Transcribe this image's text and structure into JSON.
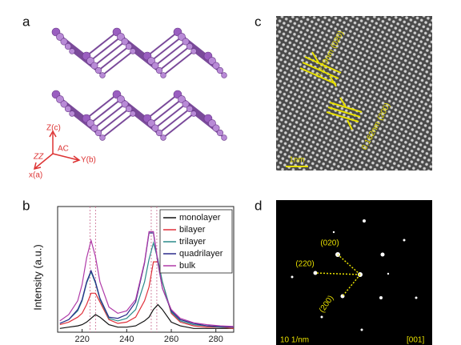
{
  "panels": {
    "a": {
      "label": "a",
      "axes_labels": {
        "z": "Z(c)",
        "ac": "AC",
        "zz": "ZZ",
        "y": "Y(b)",
        "x": "x(a)"
      }
    },
    "b": {
      "label": "b"
    },
    "c": {
      "label": "c",
      "annotations": [
        "0.229nm (020)",
        "0.162nm (200)"
      ],
      "scale_bar": "1nm"
    },
    "d": {
      "label": "d",
      "spots": [
        "(020)",
        "(220)",
        "(200)"
      ],
      "scale_bar": "10 1/nm",
      "zone_axis": "[001]"
    }
  },
  "chart_data": {
    "type": "line",
    "ylabel": "Intensity (a.u.)",
    "x": [
      210,
      214,
      218,
      220,
      222,
      224,
      226,
      228,
      232,
      236,
      240,
      244,
      248,
      250,
      252,
      254,
      256,
      260,
      264,
      270,
      276,
      282,
      288
    ],
    "xlim": [
      209,
      288
    ],
    "xticks": [
      220,
      240,
      260,
      280
    ],
    "ylim": [
      0,
      1
    ],
    "reference_lines": [
      223.5,
      226,
      251,
      253.5
    ],
    "reference_color": "#c86a90",
    "legend": "upper right",
    "series": [
      {
        "name": "monolayer",
        "color": "#111111",
        "values": [
          0.03,
          0.04,
          0.05,
          0.06,
          0.08,
          0.11,
          0.14,
          0.12,
          0.06,
          0.04,
          0.04,
          0.05,
          0.09,
          0.12,
          0.18,
          0.22,
          0.18,
          0.08,
          0.05,
          0.03,
          0.03,
          0.03,
          0.03
        ]
      },
      {
        "name": "bilayer",
        "color": "#e0303a",
        "values": [
          0.06,
          0.08,
          0.12,
          0.15,
          0.22,
          0.31,
          0.31,
          0.24,
          0.1,
          0.07,
          0.08,
          0.12,
          0.25,
          0.36,
          0.56,
          0.56,
          0.4,
          0.15,
          0.08,
          0.05,
          0.04,
          0.04,
          0.03
        ]
      },
      {
        "name": "trilayer",
        "color": "#2a8a8a",
        "values": [
          0.07,
          0.1,
          0.17,
          0.25,
          0.39,
          0.48,
          0.39,
          0.26,
          0.11,
          0.09,
          0.11,
          0.18,
          0.4,
          0.58,
          0.71,
          0.58,
          0.4,
          0.16,
          0.09,
          0.06,
          0.05,
          0.04,
          0.04
        ]
      },
      {
        "name": "quadrilayer",
        "color": "#2a2a8a",
        "values": [
          0.07,
          0.1,
          0.18,
          0.26,
          0.4,
          0.49,
          0.4,
          0.27,
          0.12,
          0.11,
          0.14,
          0.24,
          0.55,
          0.79,
          0.79,
          0.55,
          0.35,
          0.17,
          0.1,
          0.07,
          0.05,
          0.045,
          0.04
        ]
      },
      {
        "name": "bulk",
        "color": "#b03aa8",
        "values": [
          0.09,
          0.14,
          0.25,
          0.38,
          0.59,
          0.73,
          0.6,
          0.4,
          0.2,
          0.15,
          0.17,
          0.26,
          0.56,
          0.8,
          0.8,
          0.56,
          0.35,
          0.18,
          0.11,
          0.075,
          0.06,
          0.05,
          0.045
        ]
      }
    ]
  }
}
